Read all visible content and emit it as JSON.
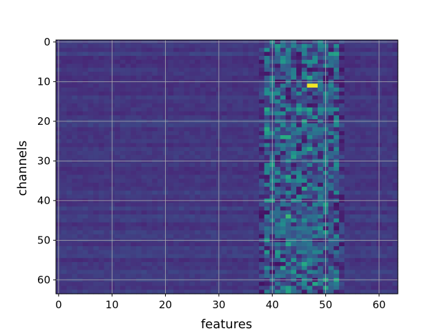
{
  "chart_data": {
    "type": "heatmap",
    "title": "",
    "xlabel": "features",
    "ylabel": "channels",
    "xlim": [
      -0.5,
      63.5
    ],
    "ylim": [
      63.5,
      -0.5
    ],
    "y_inverted": true,
    "xticks": [
      0,
      10,
      20,
      30,
      40,
      50,
      60
    ],
    "yticks": [
      0,
      10,
      20,
      30,
      40,
      50,
      60
    ],
    "grid": true,
    "grid_color": "#b0b0b0",
    "colormap": "viridis",
    "value_range": [
      0,
      1
    ],
    "shape": [
      64,
      64
    ],
    "background_level": 0.17,
    "active_band_features": [
      38,
      53
    ],
    "notable_cells": [
      {
        "channel": 1,
        "feature": 41,
        "value": 0.55
      },
      {
        "channel": 1,
        "feature": 46,
        "value": 0.5
      },
      {
        "channel": 11,
        "feature": 47,
        "value": 0.98
      },
      {
        "channel": 11,
        "feature": 48,
        "value": 0.98
      },
      {
        "channel": 17,
        "feature": 45,
        "value": 0.58
      },
      {
        "channel": 17,
        "feature": 47,
        "value": 0.58
      },
      {
        "channel": 24,
        "feature": 42,
        "value": 0.62
      },
      {
        "channel": 24,
        "feature": 43,
        "value": 0.62
      },
      {
        "channel": 37,
        "feature": 46,
        "value": 0.6
      },
      {
        "channel": 44,
        "feature": 43,
        "value": 0.68
      },
      {
        "channel": 48,
        "feature": 50,
        "value": 0.55
      },
      {
        "channel": 53,
        "feature": 41,
        "value": 0.55
      }
    ]
  }
}
